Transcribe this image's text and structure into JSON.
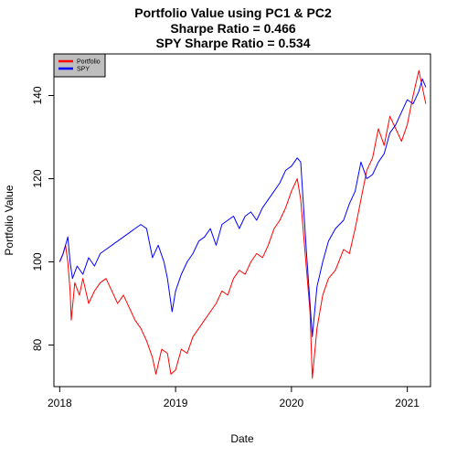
{
  "chart_data": {
    "type": "line",
    "title_lines": [
      "Portfolio Value using PC1 & PC2",
      "Sharpe Ratio = 0.466",
      "SPY Sharpe Ratio = 0.534"
    ],
    "xlabel": "Date",
    "ylabel": "Portfolio Value",
    "xlim": [
      2017.95,
      2021.2
    ],
    "ylim": [
      70,
      150
    ],
    "x_ticks": [
      2018,
      2019,
      2020,
      2021
    ],
    "x_tick_labels": [
      "2018",
      "2019",
      "2020",
      "2021"
    ],
    "y_ticks": [
      80,
      100,
      120,
      140
    ],
    "y_tick_labels": [
      "80",
      "100",
      "120",
      "140"
    ],
    "grid": false,
    "legend_position": "top-left",
    "series": [
      {
        "name": "Portfolio",
        "color": "#ff0000",
        "points": [
          [
            2018.0,
            100
          ],
          [
            2018.03,
            102
          ],
          [
            2018.05,
            104
          ],
          [
            2018.07,
            100
          ],
          [
            2018.09,
            93
          ],
          [
            2018.1,
            86
          ],
          [
            2018.13,
            95
          ],
          [
            2018.17,
            92
          ],
          [
            2018.2,
            96
          ],
          [
            2018.25,
            90
          ],
          [
            2018.3,
            93
          ],
          [
            2018.35,
            95
          ],
          [
            2018.4,
            96
          ],
          [
            2018.45,
            93
          ],
          [
            2018.5,
            90
          ],
          [
            2018.55,
            92
          ],
          [
            2018.6,
            89
          ],
          [
            2018.65,
            86
          ],
          [
            2018.7,
            84
          ],
          [
            2018.75,
            81
          ],
          [
            2018.8,
            77
          ],
          [
            2018.83,
            73
          ],
          [
            2018.88,
            79
          ],
          [
            2018.93,
            78
          ],
          [
            2018.96,
            73
          ],
          [
            2019.0,
            74
          ],
          [
            2019.05,
            79
          ],
          [
            2019.1,
            78
          ],
          [
            2019.15,
            82
          ],
          [
            2019.2,
            84
          ],
          [
            2019.25,
            86
          ],
          [
            2019.3,
            88
          ],
          [
            2019.35,
            90
          ],
          [
            2019.4,
            93
          ],
          [
            2019.45,
            92
          ],
          [
            2019.5,
            96
          ],
          [
            2019.55,
            98
          ],
          [
            2019.6,
            97
          ],
          [
            2019.65,
            100
          ],
          [
            2019.7,
            102
          ],
          [
            2019.75,
            101
          ],
          [
            2019.8,
            104
          ],
          [
            2019.85,
            108
          ],
          [
            2019.9,
            110
          ],
          [
            2019.95,
            113
          ],
          [
            2020.0,
            117
          ],
          [
            2020.05,
            120
          ],
          [
            2020.08,
            115
          ],
          [
            2020.1,
            108
          ],
          [
            2020.13,
            98
          ],
          [
            2020.16,
            88
          ],
          [
            2020.18,
            72
          ],
          [
            2020.22,
            84
          ],
          [
            2020.27,
            92
          ],
          [
            2020.32,
            96
          ],
          [
            2020.38,
            98
          ],
          [
            2020.45,
            103
          ],
          [
            2020.5,
            102
          ],
          [
            2020.55,
            108
          ],
          [
            2020.6,
            115
          ],
          [
            2020.65,
            122
          ],
          [
            2020.7,
            125
          ],
          [
            2020.75,
            132
          ],
          [
            2020.8,
            128
          ],
          [
            2020.85,
            135
          ],
          [
            2020.9,
            132
          ],
          [
            2020.95,
            129
          ],
          [
            2021.0,
            133
          ],
          [
            2021.05,
            140
          ],
          [
            2021.1,
            146
          ],
          [
            2021.13,
            142
          ],
          [
            2021.16,
            138
          ]
        ]
      },
      {
        "name": "SPY",
        "color": "#0000ff",
        "points": [
          [
            2018.0,
            100
          ],
          [
            2018.03,
            102
          ],
          [
            2018.05,
            104
          ],
          [
            2018.07,
            106
          ],
          [
            2018.09,
            100
          ],
          [
            2018.11,
            96
          ],
          [
            2018.15,
            99
          ],
          [
            2018.2,
            97
          ],
          [
            2018.25,
            101
          ],
          [
            2018.3,
            99
          ],
          [
            2018.35,
            102
          ],
          [
            2018.4,
            103
          ],
          [
            2018.45,
            104
          ],
          [
            2018.5,
            105
          ],
          [
            2018.55,
            106
          ],
          [
            2018.6,
            107
          ],
          [
            2018.65,
            108
          ],
          [
            2018.7,
            109
          ],
          [
            2018.75,
            108
          ],
          [
            2018.8,
            101
          ],
          [
            2018.85,
            104
          ],
          [
            2018.9,
            100
          ],
          [
            2018.93,
            96
          ],
          [
            2018.97,
            88
          ],
          [
            2019.0,
            93
          ],
          [
            2019.05,
            97
          ],
          [
            2019.1,
            100
          ],
          [
            2019.15,
            102
          ],
          [
            2019.2,
            105
          ],
          [
            2019.25,
            106
          ],
          [
            2019.3,
            108
          ],
          [
            2019.35,
            104
          ],
          [
            2019.4,
            109
          ],
          [
            2019.45,
            110
          ],
          [
            2019.5,
            111
          ],
          [
            2019.55,
            108
          ],
          [
            2019.6,
            111
          ],
          [
            2019.65,
            112
          ],
          [
            2019.7,
            110
          ],
          [
            2019.75,
            113
          ],
          [
            2019.8,
            115
          ],
          [
            2019.85,
            117
          ],
          [
            2019.9,
            119
          ],
          [
            2019.95,
            122
          ],
          [
            2020.0,
            123
          ],
          [
            2020.05,
            125
          ],
          [
            2020.08,
            124
          ],
          [
            2020.1,
            115
          ],
          [
            2020.13,
            102
          ],
          [
            2020.16,
            90
          ],
          [
            2020.18,
            82
          ],
          [
            2020.22,
            94
          ],
          [
            2020.27,
            100
          ],
          [
            2020.32,
            105
          ],
          [
            2020.38,
            108
          ],
          [
            2020.45,
            110
          ],
          [
            2020.5,
            114
          ],
          [
            2020.55,
            117
          ],
          [
            2020.6,
            124
          ],
          [
            2020.65,
            120
          ],
          [
            2020.7,
            121
          ],
          [
            2020.75,
            124
          ],
          [
            2020.8,
            126
          ],
          [
            2020.85,
            131
          ],
          [
            2020.9,
            133
          ],
          [
            2020.95,
            136
          ],
          [
            2021.0,
            139
          ],
          [
            2021.05,
            138
          ],
          [
            2021.1,
            141
          ],
          [
            2021.13,
            144
          ],
          [
            2021.16,
            142
          ]
        ]
      }
    ]
  }
}
